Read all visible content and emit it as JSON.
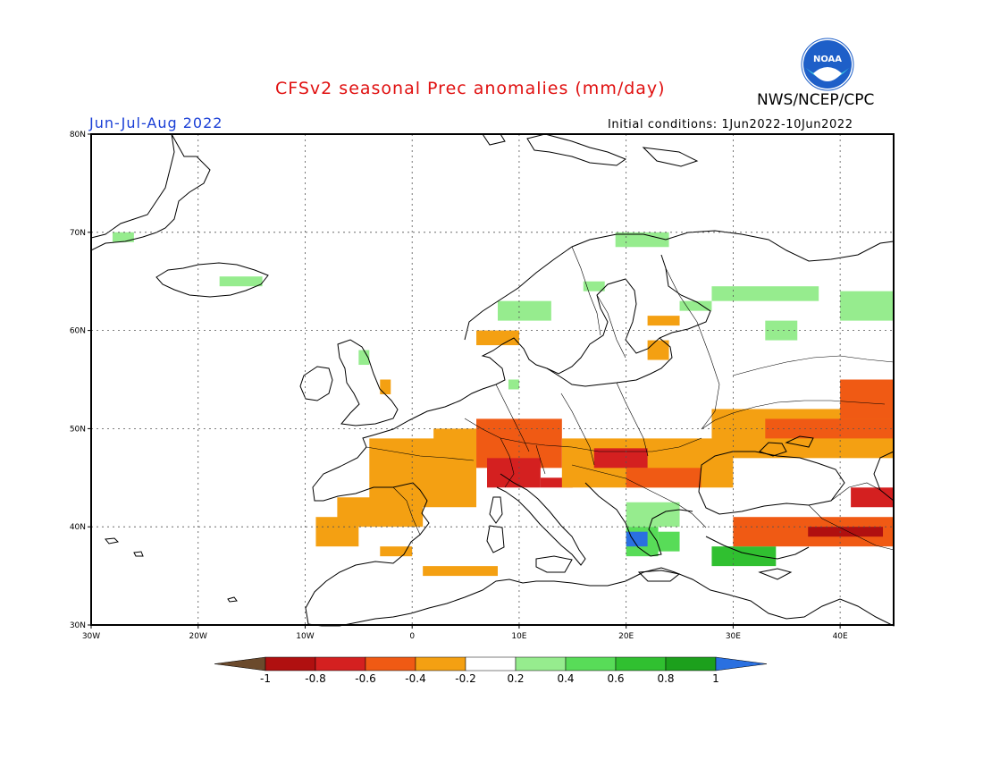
{
  "title": "CFSv2 seasonal Prec anomalies (mm/day)",
  "season": "Jun-Jul-Aug 2022",
  "initial_conditions": "Initial conditions: 1Jun2022-10Jun2022",
  "organization": "NWS/NCEP/CPC",
  "logo_text": "NOAA",
  "lat_labels": [
    "80N",
    "70N",
    "60N",
    "50N",
    "40N",
    "30N"
  ],
  "lon_labels": [
    "30W",
    "20W",
    "10W",
    "0",
    "10E",
    "20E",
    "30E",
    "40E"
  ],
  "colorbar": {
    "labels": [
      "-1",
      "-0.8",
      "-0.6",
      "-0.4",
      "-0.2",
      "0.2",
      "0.4",
      "0.6",
      "0.8",
      "1"
    ],
    "colors": {
      "below_min": "#6b4a2c",
      "bins": [
        "#b01010",
        "#d42020",
        "#f05a14",
        "#f4a012",
        "#ffffff",
        "#96ec8e",
        "#58dc58",
        "#30c030",
        "#1ca01c"
      ],
      "above_max": "#2a70e0"
    }
  },
  "colors": {
    "title": "#e01010",
    "season": "#1a3fd6",
    "logo": "#1e5fc8"
  },
  "map_data": {
    "lon_range": [
      -30,
      45
    ],
    "lat_range": [
      30,
      80
    ],
    "anomaly_regions": [
      {
        "name": "N Finland/Norway",
        "lon": [
          19,
          24
        ],
        "lat": [
          68.5,
          70
        ],
        "value": 0.3
      },
      {
        "name": "Svalbard-coast",
        "lon": [
          -28,
          -26
        ],
        "lat": [
          69,
          70
        ],
        "value": 0.3
      },
      {
        "name": "Iceland",
        "lon": [
          -18,
          -14
        ],
        "lat": [
          64.5,
          65.5
        ],
        "value": 0.3
      },
      {
        "name": "Norway coast",
        "lon": [
          8,
          13
        ],
        "lat": [
          61,
          63
        ],
        "value": 0.3
      },
      {
        "name": "N Sweden",
        "lon": [
          16,
          18
        ],
        "lat": [
          64,
          65
        ],
        "value": 0.3
      },
      {
        "name": "S Norway",
        "lon": [
          6,
          10
        ],
        "lat": [
          58.5,
          60
        ],
        "value": -0.3
      },
      {
        "name": "Scotland",
        "lon": [
          -5,
          -4
        ],
        "lat": [
          56.5,
          58
        ],
        "value": 0.3
      },
      {
        "name": "England",
        "lon": [
          -3,
          -2
        ],
        "lat": [
          53.5,
          55
        ],
        "value": -0.3
      },
      {
        "name": "Finland SE",
        "lon": [
          25,
          28
        ],
        "lat": [
          62,
          63
        ],
        "value": 0.3
      },
      {
        "name": "Finland S",
        "lon": [
          22,
          25
        ],
        "lat": [
          60.5,
          61.5
        ],
        "value": -0.3
      },
      {
        "name": "Karelia",
        "lon": [
          28,
          38
        ],
        "lat": [
          63,
          64.5
        ],
        "value": 0.3
      },
      {
        "name": "Russia NE",
        "lon": [
          40,
          45
        ],
        "lat": [
          61,
          64
        ],
        "value": 0.3
      },
      {
        "name": "Russia N",
        "lon": [
          33,
          36
        ],
        "lat": [
          59,
          61
        ],
        "value": 0.3
      },
      {
        "name": "Baltic",
        "lon": [
          22,
          24
        ],
        "lat": [
          57,
          59
        ],
        "value": -0.3
      },
      {
        "name": "Denmark",
        "lon": [
          9,
          10
        ],
        "lat": [
          54,
          55
        ],
        "value": 0.3
      },
      {
        "name": "France W",
        "lon": [
          -4,
          6
        ],
        "lat": [
          42,
          49
        ],
        "value": -0.3
      },
      {
        "name": "Benelux",
        "lon": [
          2,
          6
        ],
        "lat": [
          48,
          50
        ],
        "value": -0.3
      },
      {
        "name": "Germany S",
        "lon": [
          6,
          14
        ],
        "lat": [
          46,
          51
        ],
        "value": -0.5
      },
      {
        "name": "Alps",
        "lon": [
          7,
          12
        ],
        "lat": [
          44,
          47
        ],
        "value": -0.6
      },
      {
        "name": "N Italy",
        "lon": [
          12,
          15
        ],
        "lat": [
          44,
          45
        ],
        "value": -0.6
      },
      {
        "name": "Central Europe",
        "lon": [
          14,
          30
        ],
        "lat": [
          44,
          49
        ],
        "value": -0.3
      },
      {
        "name": "Hungary",
        "lon": [
          17,
          22
        ],
        "lat": [
          46,
          48
        ],
        "value": -0.7
      },
      {
        "name": "Romania",
        "lon": [
          20,
          27
        ],
        "lat": [
          44,
          46
        ],
        "value": -0.5
      },
      {
        "name": "Ukraine/Russia",
        "lon": [
          28,
          45
        ],
        "lat": [
          47,
          52
        ],
        "value": -0.3
      },
      {
        "name": "Russia S",
        "lon": [
          33,
          45
        ],
        "lat": [
          49,
          51
        ],
        "value": -0.5
      },
      {
        "name": "Volga",
        "lon": [
          40,
          45
        ],
        "lat": [
          51,
          55
        ],
        "value": -0.4
      },
      {
        "name": "Iberia N",
        "lon": [
          -7,
          1
        ],
        "lat": [
          40,
          43
        ],
        "value": -0.3
      },
      {
        "name": "Iberia W",
        "lon": [
          -9,
          -5
        ],
        "lat": [
          38,
          41
        ],
        "value": -0.3
      },
      {
        "name": "Iberia S",
        "lon": [
          -3,
          0
        ],
        "lat": [
          37,
          38
        ],
        "value": -0.3
      },
      {
        "name": "N Africa",
        "lon": [
          1,
          8
        ],
        "lat": [
          35,
          36
        ],
        "value": -0.3
      },
      {
        "name": "Balkans",
        "lon": [
          20,
          25
        ],
        "lat": [
          40,
          42.5
        ],
        "value": 0.3
      },
      {
        "name": "Greece W",
        "lon": [
          20,
          23
        ],
        "lat": [
          37,
          40
        ],
        "value": 0.5
      },
      {
        "name": "Greece WW",
        "lon": [
          20,
          22
        ],
        "lat": [
          38,
          39.5
        ],
        "value": 1.1
      },
      {
        "name": "Aegean",
        "lon": [
          23,
          25
        ],
        "lat": [
          37.5,
          39.5
        ],
        "value": 0.6
      },
      {
        "name": "Turkey W",
        "lon": [
          28,
          34
        ],
        "lat": [
          36,
          38
        ],
        "value": 0.7
      },
      {
        "name": "Turkey",
        "lon": [
          30,
          45
        ],
        "lat": [
          38,
          41
        ],
        "value": -0.4
      },
      {
        "name": "Turkey E",
        "lon": [
          37,
          44
        ],
        "lat": [
          39,
          40
        ],
        "value": -0.8
      },
      {
        "name": "Caucasus",
        "lon": [
          41,
          45
        ],
        "lat": [
          42,
          44
        ],
        "value": -0.6
      }
    ]
  }
}
